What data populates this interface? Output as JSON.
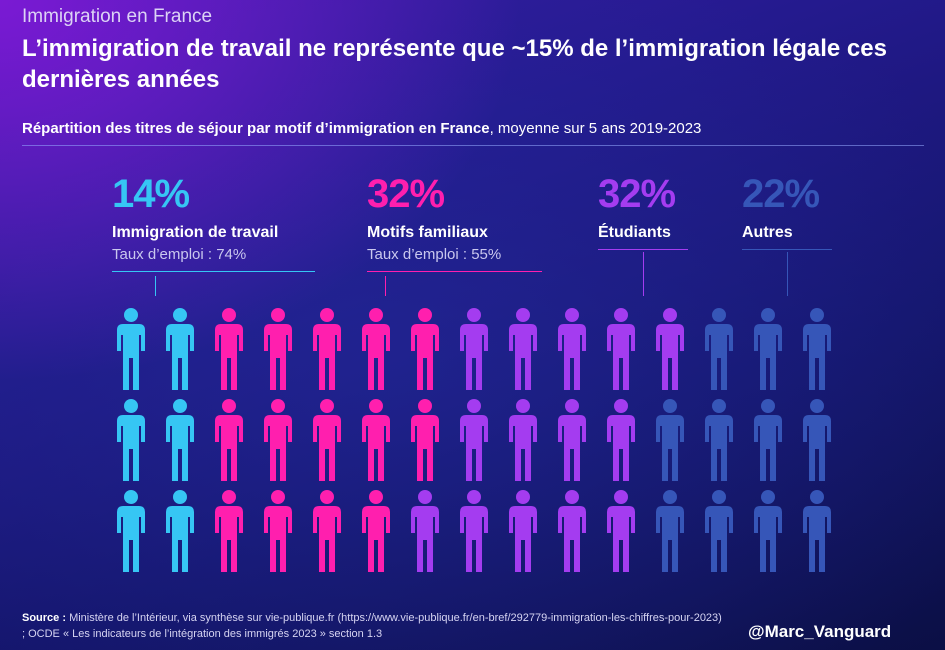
{
  "kicker": "Immigration en France",
  "headline": "L’immigration de travail ne représente que ~15% de l’immigration légale ces dernières années",
  "subtitle": {
    "bold": "Répartition des titres de séjour par motif d’immigration en France",
    "rest": ", moyenne sur 5 ans 2019-2023"
  },
  "chart_data": {
    "type": "pictogram",
    "total_figures": 45,
    "grid": {
      "rows": 3,
      "columns": 15
    },
    "categories": [
      {
        "percent_label": "14%",
        "value": 14,
        "label": "Immigration de travail",
        "note": "Taux d’emploi : 74%",
        "figures": 6,
        "color": "#36c6f4"
      },
      {
        "percent_label": "32%",
        "value": 32,
        "label": "Motifs familiaux",
        "note": "Taux d’emploi : 55%",
        "figures": 14,
        "color": "#ff1fae"
      },
      {
        "percent_label": "32%",
        "value": 32,
        "label": "Étudiants",
        "note": "",
        "figures": 14,
        "color": "#a43cf0"
      },
      {
        "percent_label": "22%",
        "value": 22,
        "label": "Autres",
        "note": "",
        "figures": 11,
        "color": "#3656b8"
      }
    ]
  },
  "source": {
    "label": "Source :",
    "text": " Ministère de l’Intérieur, via synthèse sur vie-publique.fr (https://www.vie-publique.fr/en-bref/292779-immigration-les-chiffres-pour-2023) ; OCDE « Les indicateurs de l’intégration des immigrés 2023 » section 1.3"
  },
  "handle": "@Marc_Vanguard"
}
